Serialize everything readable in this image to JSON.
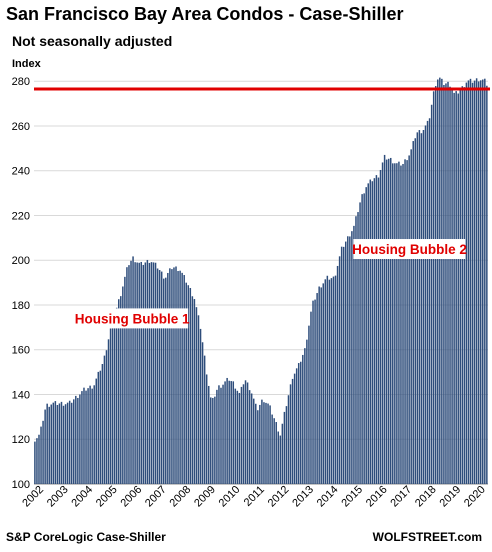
{
  "chart_data": {
    "type": "bar",
    "title": "San Francisco Bay Area Condos - Case-Shiller",
    "subtitle": "Not seasonally adjusted",
    "ylabel": "Index",
    "xlabel": "",
    "ylim": [
      100,
      285
    ],
    "yticks": [
      100,
      120,
      140,
      160,
      180,
      200,
      220,
      240,
      260,
      280
    ],
    "x_start": 2002,
    "x_end": 2020.5,
    "x_ticks": [
      "2002",
      "2003",
      "2004",
      "2005",
      "2006",
      "2007",
      "2008",
      "2009",
      "2010",
      "2011",
      "2012",
      "2013",
      "2014",
      "2015",
      "2016",
      "2017",
      "2018",
      "2019",
      "2020"
    ],
    "bar_color": "#2e4d7b",
    "reference_line": {
      "value": 276.5,
      "color": "#e00000"
    },
    "annotations": [
      {
        "text": "Housing Bubble 1",
        "x": 2006.0,
        "y": 174
      },
      {
        "text": "Housing Bubble 2",
        "x": 2017.3,
        "y": 205
      }
    ],
    "anchors": [
      [
        2002.0,
        120
      ],
      [
        2002.2,
        122
      ],
      [
        2002.45,
        135
      ],
      [
        2002.7,
        136
      ],
      [
        2003.0,
        136
      ],
      [
        2003.4,
        136
      ],
      [
        2003.7,
        139
      ],
      [
        2004.0,
        142
      ],
      [
        2004.4,
        144
      ],
      [
        2004.8,
        155
      ],
      [
        2005.1,
        170
      ],
      [
        2005.5,
        185
      ],
      [
        2005.8,
        198
      ],
      [
        2006.0,
        201
      ],
      [
        2006.3,
        198
      ],
      [
        2006.7,
        200
      ],
      [
        2007.0,
        197
      ],
      [
        2007.3,
        192
      ],
      [
        2007.6,
        197
      ],
      [
        2007.9,
        196
      ],
      [
        2008.2,
        190
      ],
      [
        2008.5,
        183
      ],
      [
        2008.75,
        170
      ],
      [
        2009.0,
        150
      ],
      [
        2009.2,
        136
      ],
      [
        2009.45,
        143
      ],
      [
        2009.7,
        145
      ],
      [
        2009.9,
        147
      ],
      [
        2010.1,
        145
      ],
      [
        2010.35,
        140
      ],
      [
        2010.55,
        147
      ],
      [
        2010.8,
        142
      ],
      [
        2011.05,
        133
      ],
      [
        2011.3,
        138
      ],
      [
        2011.55,
        135
      ],
      [
        2011.8,
        128
      ],
      [
        2012.0,
        122
      ],
      [
        2012.2,
        133
      ],
      [
        2012.5,
        148
      ],
      [
        2012.75,
        153
      ],
      [
        2013.0,
        160
      ],
      [
        2013.3,
        180
      ],
      [
        2013.6,
        188
      ],
      [
        2013.9,
        192
      ],
      [
        2014.2,
        192
      ],
      [
        2014.5,
        205
      ],
      [
        2014.75,
        210
      ],
      [
        2015.0,
        215
      ],
      [
        2015.3,
        228
      ],
      [
        2015.5,
        233
      ],
      [
        2015.75,
        236
      ],
      [
        2016.0,
        238
      ],
      [
        2016.25,
        246
      ],
      [
        2016.5,
        245
      ],
      [
        2016.75,
        243
      ],
      [
        2017.0,
        243
      ],
      [
        2017.3,
        248
      ],
      [
        2017.55,
        257
      ],
      [
        2017.8,
        258
      ],
      [
        2018.05,
        262
      ],
      [
        2018.3,
        278
      ],
      [
        2018.45,
        282
      ],
      [
        2018.65,
        279
      ],
      [
        2018.9,
        279
      ],
      [
        2019.1,
        274
      ],
      [
        2019.35,
        276
      ],
      [
        2019.6,
        280
      ],
      [
        2019.85,
        280
      ],
      [
        2020.1,
        281
      ],
      [
        2020.35,
        280
      ],
      [
        2020.5,
        277
      ]
    ],
    "source": "S&P CoreLogic Case-Shiller",
    "brand": "WOLFSTREET.com"
  }
}
